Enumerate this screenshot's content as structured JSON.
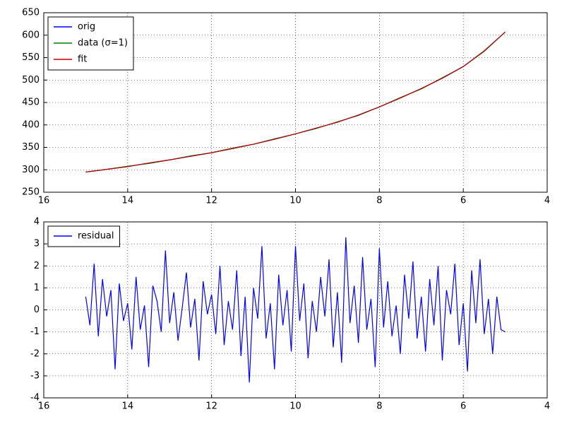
{
  "chart_data": [
    {
      "type": "line",
      "x": [
        15,
        14.5,
        14,
        13.5,
        13,
        12.5,
        12,
        11.5,
        11,
        10.5,
        10,
        9.5,
        9,
        8.5,
        8,
        7.5,
        7,
        6.5,
        6,
        5.5,
        5
      ],
      "series": [
        {
          "name": "orig",
          "color": "#0000ff",
          "values": [
            295,
            301,
            307,
            315,
            322,
            330,
            338,
            348,
            357,
            368,
            380,
            393,
            406,
            422,
            440,
            460,
            481,
            504,
            530,
            565,
            607
          ]
        },
        {
          "name": "data (σ=1)",
          "color": "#008000",
          "values": [
            295,
            301,
            308,
            314,
            322,
            331,
            338,
            347,
            357,
            369,
            380,
            392,
            407,
            421,
            440,
            461,
            480,
            505,
            530,
            564,
            607
          ]
        },
        {
          "name": "fit",
          "color": "#c00000",
          "values": [
            295,
            301,
            307,
            315,
            322,
            330,
            338,
            348,
            357,
            368,
            380,
            393,
            406,
            422,
            440,
            460,
            481,
            504,
            530,
            565,
            607
          ]
        }
      ],
      "xlim": [
        16,
        4
      ],
      "xticks": [
        16,
        14,
        12,
        10,
        8,
        6,
        4
      ],
      "ylim": [
        250,
        650
      ],
      "yticks": [
        250,
        300,
        350,
        400,
        450,
        500,
        550,
        600,
        650
      ],
      "grid": true,
      "legend": "upper left"
    },
    {
      "type": "line",
      "x": [
        15,
        14.9,
        14.8,
        14.7,
        14.6,
        14.5,
        14.4,
        14.3,
        14.2,
        14.1,
        14,
        13.9,
        13.8,
        13.7,
        13.6,
        13.5,
        13.4,
        13.3,
        13.2,
        13.1,
        13,
        12.9,
        12.8,
        12.7,
        12.6,
        12.5,
        12.4,
        12.3,
        12.2,
        12.1,
        12,
        11.9,
        11.8,
        11.7,
        11.6,
        11.5,
        11.4,
        11.3,
        11.2,
        11.1,
        11,
        10.9,
        10.8,
        10.7,
        10.6,
        10.5,
        10.4,
        10.3,
        10.2,
        10.1,
        10,
        9.9,
        9.8,
        9.7,
        9.6,
        9.5,
        9.4,
        9.3,
        9.2,
        9.1,
        9,
        8.9,
        8.8,
        8.7,
        8.6,
        8.5,
        8.4,
        8.3,
        8.2,
        8.1,
        8,
        7.9,
        7.8,
        7.7,
        7.6,
        7.5,
        7.4,
        7.3,
        7.2,
        7.1,
        7,
        6.9,
        6.8,
        6.7,
        6.6,
        6.5,
        6.4,
        6.3,
        6.2,
        6.1,
        6,
        5.9,
        5.8,
        5.7,
        5.6,
        5.5,
        5.4,
        5.3,
        5.2,
        5.1,
        5
      ],
      "series": [
        {
          "name": "residual",
          "color": "#0000ff",
          "values": [
            0.6,
            -0.7,
            2.1,
            -1.2,
            1.4,
            -0.3,
            0.9,
            -2.7,
            1.2,
            -0.5,
            0.3,
            -1.8,
            1.5,
            -0.9,
            0.2,
            -2.6,
            1.1,
            0.4,
            -1.0,
            2.7,
            -0.6,
            0.8,
            -1.4,
            0.1,
            1.7,
            -0.8,
            0.5,
            -2.3,
            1.3,
            -0.2,
            0.7,
            -1.1,
            2.0,
            -1.6,
            0.4,
            -0.9,
            1.8,
            -2.1,
            0.6,
            -3.3,
            1.0,
            -0.4,
            2.9,
            -1.3,
            0.3,
            -2.7,
            1.6,
            -0.7,
            0.9,
            -1.9,
            2.9,
            -0.5,
            1.2,
            -2.2,
            0.4,
            -1.0,
            1.5,
            -0.3,
            2.3,
            -1.7,
            0.8,
            -2.4,
            3.3,
            -0.6,
            1.1,
            -1.5,
            2.4,
            -0.9,
            0.5,
            -2.6,
            2.8,
            -0.8,
            1.3,
            -1.2,
            0.2,
            -2.0,
            1.6,
            -0.4,
            2.2,
            -1.3,
            0.6,
            -1.9,
            1.4,
            -0.7,
            2.0,
            -2.3,
            0.9,
            -0.2,
            2.1,
            -1.6,
            0.3,
            -2.8,
            1.8,
            -0.6,
            2.3,
            -1.1,
            0.5,
            -2.0,
            0.6,
            -0.9,
            -1.0
          ]
        }
      ],
      "xlim": [
        16,
        4
      ],
      "xticks": [
        16,
        14,
        12,
        10,
        8,
        6,
        4
      ],
      "ylim": [
        -4,
        4
      ],
      "yticks": [
        -4,
        -3,
        -2,
        -1,
        0,
        1,
        2,
        3,
        4
      ],
      "grid": true,
      "legend": "upper left"
    }
  ]
}
